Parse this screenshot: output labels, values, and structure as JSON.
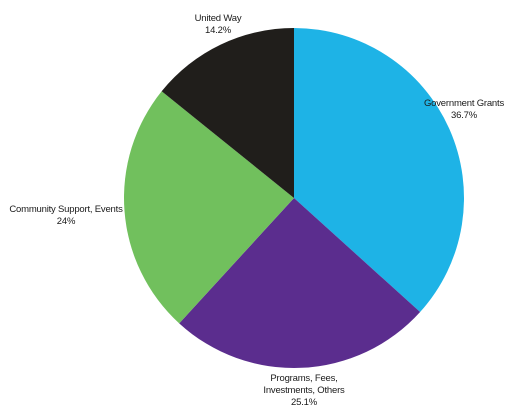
{
  "chart_data": {
    "type": "pie",
    "title": "",
    "slices": [
      {
        "label_lines": [
          "Government Grants"
        ],
        "value_text": "36.7%",
        "value": 36.7,
        "color": "#1eb3e6"
      },
      {
        "label_lines": [
          "Programs, Fees,",
          "Investments, Others"
        ],
        "value_text": "25.1%",
        "value": 25.1,
        "color": "#5b2d8e"
      },
      {
        "label_lines": [
          "Community Support, Events"
        ],
        "value_text": "24%",
        "value": 24,
        "color": "#71c05d"
      },
      {
        "label_lines": [
          "United Way"
        ],
        "value_text": "14.2%",
        "value": 14.2,
        "color": "#201e1b"
      }
    ]
  }
}
